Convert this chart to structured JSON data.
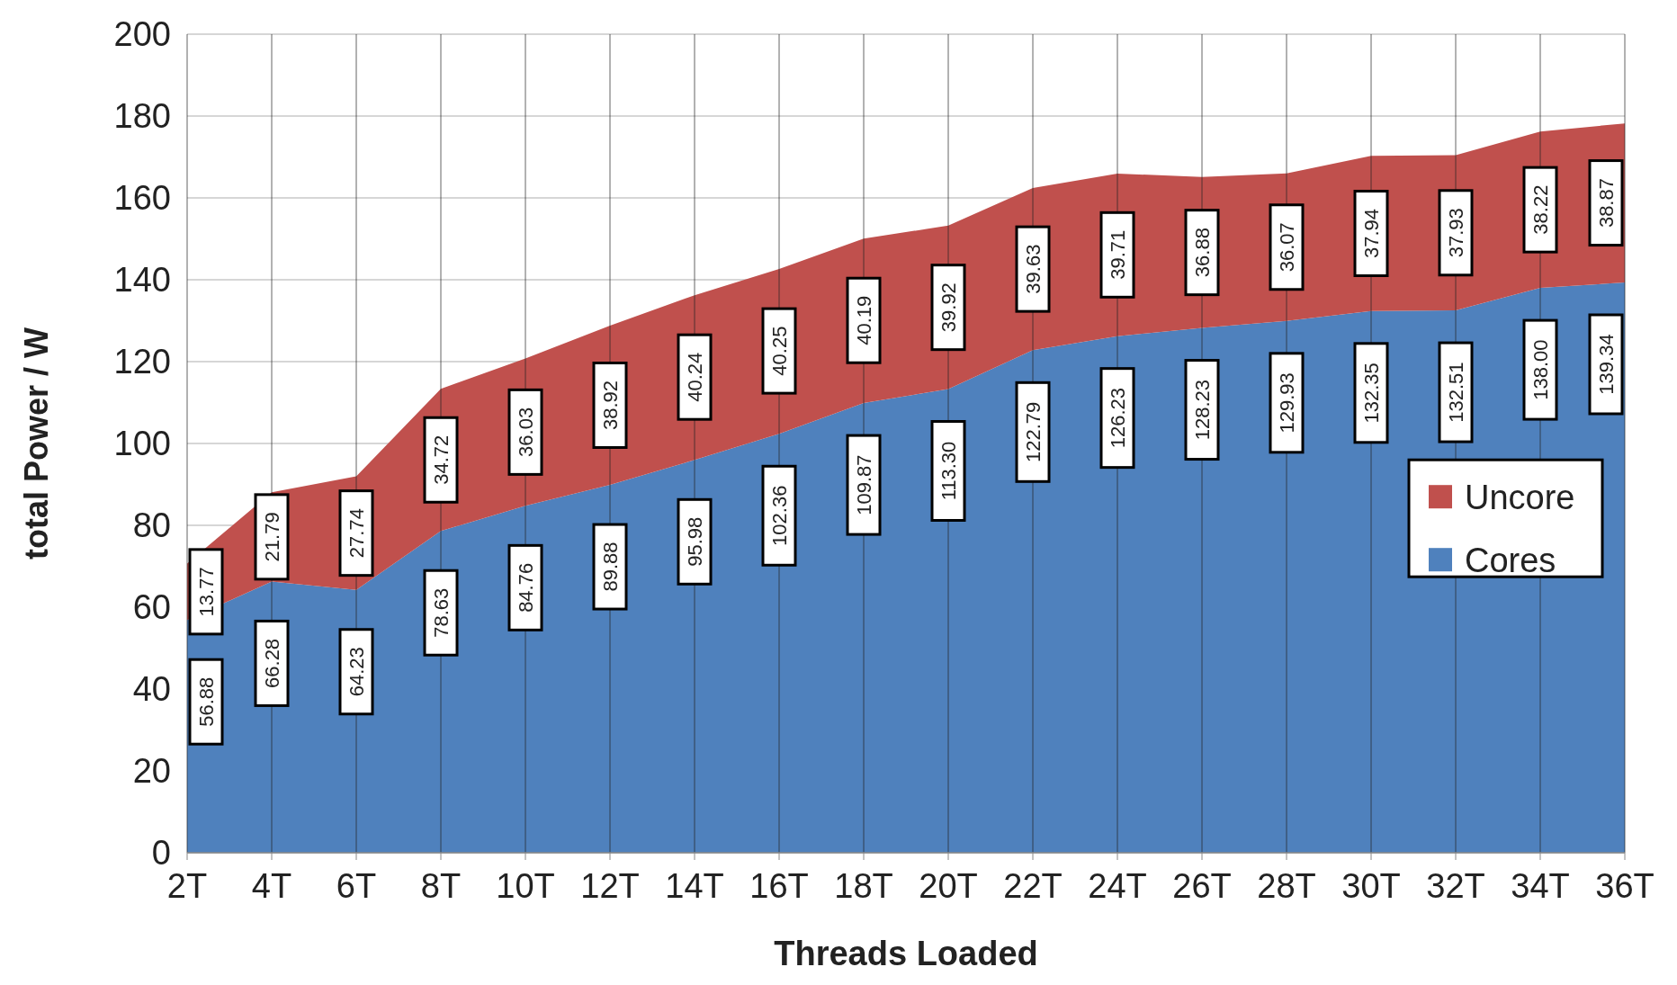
{
  "chart_data": {
    "type": "area",
    "stacked": true,
    "xlabel": "Threads Loaded",
    "ylabel": "total Power / W",
    "categories": [
      "2T",
      "4T",
      "6T",
      "8T",
      "10T",
      "12T",
      "14T",
      "16T",
      "18T",
      "20T",
      "22T",
      "24T",
      "26T",
      "28T",
      "30T",
      "32T",
      "34T",
      "36T"
    ],
    "series": [
      {
        "name": "Cores",
        "color": "#4f81bd",
        "values": [
          56.88,
          66.28,
          64.23,
          78.63,
          84.76,
          89.88,
          95.98,
          102.36,
          109.87,
          113.3,
          122.79,
          126.23,
          128.23,
          129.93,
          132.35,
          132.51,
          138.0,
          139.34
        ],
        "value_labels": [
          "56.88",
          "66.28",
          "64.23",
          "78.63",
          "84.76",
          "89.88",
          "95.98",
          "102.36",
          "109.87",
          "113.30",
          "122.79",
          "126.23",
          "128.23",
          "129.93",
          "132.35",
          "132.51",
          "138.00",
          "139.34"
        ]
      },
      {
        "name": "Uncore",
        "color": "#c0504d",
        "values": [
          13.77,
          21.79,
          27.74,
          34.72,
          36.03,
          38.92,
          40.24,
          40.25,
          40.19,
          39.92,
          39.63,
          39.71,
          36.88,
          36.07,
          37.94,
          37.93,
          38.22,
          38.87
        ],
        "value_labels": [
          "13.77",
          "21.79",
          "27.74",
          "34.72",
          "36.03",
          "38.92",
          "40.24",
          "40.25",
          "40.19",
          "39.92",
          "39.63",
          "39.71",
          "36.88",
          "36.07",
          "37.94",
          "37.93",
          "38.22",
          "38.87"
        ]
      }
    ],
    "ylim": [
      0,
      200
    ],
    "yticks": [
      0,
      20,
      40,
      60,
      80,
      100,
      120,
      140,
      160,
      180,
      200
    ],
    "grid": true,
    "legend": "right"
  }
}
